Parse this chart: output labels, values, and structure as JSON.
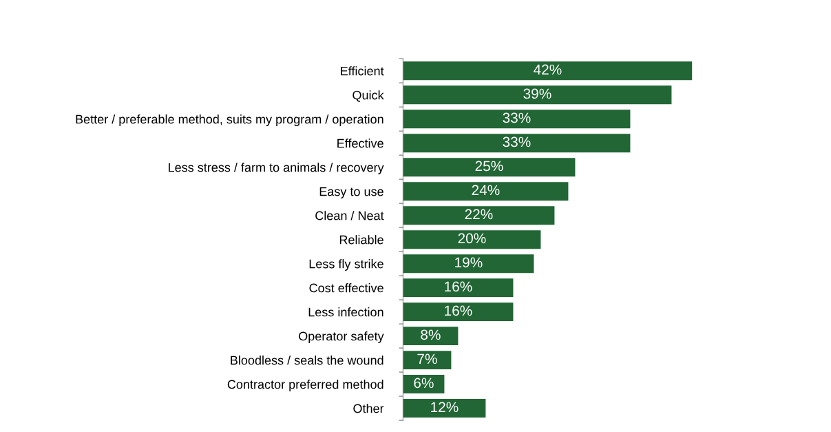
{
  "chart_data": {
    "type": "bar",
    "orientation": "horizontal",
    "categories": [
      "Efficient",
      "Quick",
      "Better / preferable method, suits my program / operation",
      "Effective",
      "Less stress / farm to animals / recovery",
      "Easy to use",
      "Clean / Neat",
      "Reliable",
      "Less fly strike",
      "Cost effective",
      "Less infection",
      "Operator safety",
      "Bloodless / seals the wound",
      "Contractor preferred method",
      "Other"
    ],
    "values": [
      42,
      39,
      33,
      33,
      25,
      24,
      22,
      20,
      19,
      16,
      16,
      8,
      7,
      6,
      12
    ],
    "value_labels": [
      "42%",
      "39%",
      "33%",
      "33%",
      "25%",
      "24%",
      "22%",
      "20%",
      "19%",
      "16%",
      "16%",
      "8%",
      "7%",
      "6%",
      "12%"
    ],
    "color": "#216634",
    "grid": false,
    "legend": false,
    "tick_labels": "y"
  }
}
